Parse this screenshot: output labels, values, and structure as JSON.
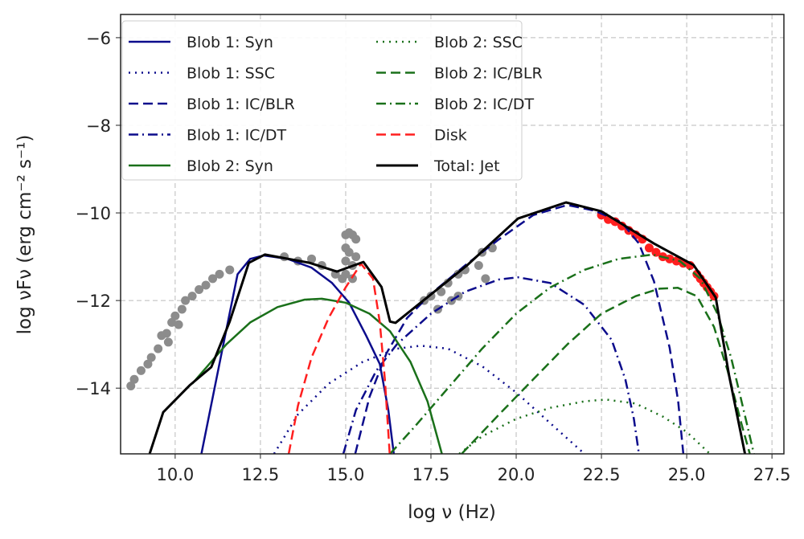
{
  "chart_data": {
    "type": "line",
    "xlabel": "log ν (Hz)",
    "ylabel": "log νFν (erg cm⁻² s⁻¹)",
    "xlim": [
      8.4,
      27.85
    ],
    "ylim": [
      -15.5,
      -5.47
    ],
    "xticks": [
      "10.0",
      "12.5",
      "15.0",
      "17.5",
      "20.0",
      "22.5",
      "25.0",
      "27.5"
    ],
    "yticks": [
      "−6",
      "−8",
      "−10",
      "−12",
      "−14"
    ],
    "grid": true,
    "legend_position": "top-left",
    "series": [
      {
        "name": "Blob 1: Syn",
        "color": "#0c0c8c",
        "style": "solid",
        "points": [
          [
            10.77,
            -15.5
          ],
          [
            11.36,
            -13.2
          ],
          [
            11.83,
            -11.4
          ],
          [
            12.2,
            -11.05
          ],
          [
            12.6,
            -10.97
          ],
          [
            13.3,
            -11.05
          ],
          [
            14.0,
            -11.25
          ],
          [
            14.6,
            -11.6
          ],
          [
            15.1,
            -12.05
          ],
          [
            15.6,
            -12.8
          ],
          [
            16.0,
            -13.45
          ],
          [
            16.25,
            -14.5
          ],
          [
            16.41,
            -15.5
          ]
        ]
      },
      {
        "name": "Blob 1: SSC",
        "color": "#0c0c8c",
        "style": "dotted",
        "points": [
          [
            12.9,
            -15.5
          ],
          [
            13.6,
            -14.6
          ],
          [
            14.5,
            -13.9
          ],
          [
            15.5,
            -13.4
          ],
          [
            16.5,
            -13.1
          ],
          [
            17.2,
            -13.03
          ],
          [
            18.0,
            -13.1
          ],
          [
            19,
            -13.5
          ],
          [
            20,
            -14.1
          ],
          [
            21,
            -14.8
          ],
          [
            22,
            -15.5
          ]
        ]
      },
      {
        "name": "Blob 1: IC/BLR",
        "color": "#0c0c8c",
        "style": "dashed",
        "points": [
          [
            15.28,
            -15.5
          ],
          [
            15.7,
            -14.2
          ],
          [
            16.2,
            -13.2
          ],
          [
            16.8,
            -12.4
          ],
          [
            17.5,
            -11.85
          ],
          [
            18.5,
            -11.2
          ],
          [
            19.5,
            -10.6
          ],
          [
            20.5,
            -10.05
          ],
          [
            21.5,
            -9.82
          ],
          [
            22.3,
            -9.95
          ],
          [
            23.1,
            -10.22
          ],
          [
            23.6,
            -10.7
          ],
          [
            24.04,
            -11.56
          ],
          [
            24.5,
            -13.08
          ],
          [
            24.75,
            -14.3
          ],
          [
            24.9,
            -15.5
          ]
        ]
      },
      {
        "name": "Blob 1: IC/DT",
        "color": "#0c0c8c",
        "style": "dashdot",
        "points": [
          [
            14.93,
            -15.5
          ],
          [
            15.3,
            -14.5
          ],
          [
            15.9,
            -13.6
          ],
          [
            16.5,
            -13.0
          ],
          [
            17.5,
            -12.3
          ],
          [
            18.5,
            -11.8
          ],
          [
            19.5,
            -11.52
          ],
          [
            20.05,
            -11.47
          ],
          [
            21,
            -11.6
          ],
          [
            22,
            -12.1
          ],
          [
            22.8,
            -12.9
          ],
          [
            23.2,
            -13.8
          ],
          [
            23.45,
            -14.7
          ],
          [
            23.6,
            -15.5
          ]
        ]
      },
      {
        "name": "Blob 2: Syn",
        "color": "#1a701a",
        "style": "solid",
        "points": [
          [
            10.5,
            -13.9
          ],
          [
            11,
            -13.45
          ],
          [
            11.5,
            -13.0
          ],
          [
            12.2,
            -12.5
          ],
          [
            13,
            -12.15
          ],
          [
            13.8,
            -11.98
          ],
          [
            14.3,
            -11.96
          ],
          [
            15,
            -12.05
          ],
          [
            15.7,
            -12.3
          ],
          [
            16.3,
            -12.7
          ],
          [
            16.9,
            -13.4
          ],
          [
            17.4,
            -14.3
          ],
          [
            17.82,
            -15.5
          ]
        ]
      },
      {
        "name": "Blob 2: SSC",
        "color": "#1a701a",
        "style": "dotted",
        "points": [
          [
            18.33,
            -15.5
          ],
          [
            19,
            -15.1
          ],
          [
            20,
            -14.7
          ],
          [
            21,
            -14.45
          ],
          [
            22,
            -14.3
          ],
          [
            22.63,
            -14.26
          ],
          [
            23.5,
            -14.35
          ],
          [
            24.3,
            -14.65
          ],
          [
            25,
            -15.0
          ],
          [
            25.68,
            -15.5
          ]
        ]
      },
      {
        "name": "Blob 2: IC/BLR",
        "color": "#1a701a",
        "style": "dashed",
        "points": [
          [
            18.4,
            -15.5
          ],
          [
            19.5,
            -14.6
          ],
          [
            20.5,
            -13.8
          ],
          [
            21.5,
            -13.0
          ],
          [
            22.5,
            -12.3
          ],
          [
            23.5,
            -11.9
          ],
          [
            24.2,
            -11.73
          ],
          [
            24.74,
            -11.71
          ],
          [
            25.3,
            -11.9
          ],
          [
            25.8,
            -12.6
          ],
          [
            26.2,
            -13.6
          ],
          [
            26.6,
            -14.8
          ],
          [
            26.85,
            -15.5
          ]
        ]
      },
      {
        "name": "Blob 2: IC/DT",
        "color": "#1a701a",
        "style": "dashdot",
        "points": [
          [
            16.3,
            -15.5
          ],
          [
            17,
            -14.9
          ],
          [
            18,
            -14.0
          ],
          [
            19,
            -13.1
          ],
          [
            20,
            -12.3
          ],
          [
            21,
            -11.7
          ],
          [
            22,
            -11.3
          ],
          [
            23,
            -11.05
          ],
          [
            24,
            -10.95
          ],
          [
            24.8,
            -11.1
          ],
          [
            25.4,
            -11.5
          ],
          [
            25.9,
            -12.3
          ],
          [
            26.3,
            -13.3
          ],
          [
            26.7,
            -14.6
          ],
          [
            26.97,
            -15.5
          ]
        ]
      },
      {
        "name": "Disk",
        "color": "#ff1f1f",
        "style": "dashed",
        "points": [
          [
            13.33,
            -15.5
          ],
          [
            13.6,
            -14.4
          ],
          [
            14.0,
            -13.3
          ],
          [
            14.5,
            -12.4
          ],
          [
            15.0,
            -11.7
          ],
          [
            15.45,
            -11.16
          ],
          [
            15.8,
            -11.5
          ],
          [
            16.0,
            -12.5
          ],
          [
            16.15,
            -13.8
          ],
          [
            16.29,
            -15.5
          ]
        ]
      },
      {
        "name": "Total: Jet",
        "color": "#000000",
        "style": "solid",
        "points": [
          [
            9.25,
            -15.5
          ],
          [
            9.65,
            -14.55
          ],
          [
            10.42,
            -13.94
          ],
          [
            11.06,
            -13.52
          ],
          [
            11.6,
            -12.48
          ],
          [
            12.16,
            -11.14
          ],
          [
            12.63,
            -10.95
          ],
          [
            13.94,
            -11.14
          ],
          [
            14.74,
            -11.34
          ],
          [
            15.52,
            -11.12
          ],
          [
            16.05,
            -11.69
          ],
          [
            16.3,
            -12.48
          ],
          [
            16.46,
            -12.51
          ],
          [
            17.39,
            -11.93
          ],
          [
            18.57,
            -11.19
          ],
          [
            20.05,
            -10.13
          ],
          [
            21.46,
            -9.76
          ],
          [
            22.49,
            -9.96
          ],
          [
            24.04,
            -10.7
          ],
          [
            25.2,
            -11.19
          ],
          [
            25.85,
            -11.93
          ],
          [
            26.24,
            -13.7
          ],
          [
            26.71,
            -15.5
          ]
        ]
      }
    ],
    "observations": [
      {
        "color": "#8c8c8c",
        "points": [
          [
            8.7,
            -13.95
          ],
          [
            8.8,
            -13.8
          ],
          [
            9.0,
            -13.6
          ],
          [
            9.2,
            -13.45
          ],
          [
            9.3,
            -13.3
          ],
          [
            9.5,
            -13.1
          ],
          [
            9.6,
            -12.8
          ],
          [
            9.75,
            -12.75
          ],
          [
            9.9,
            -12.5
          ],
          [
            10.0,
            -12.35
          ],
          [
            10.2,
            -12.2
          ],
          [
            10.3,
            -12.0
          ],
          [
            10.5,
            -11.9
          ],
          [
            10.7,
            -11.75
          ],
          [
            10.9,
            -11.65
          ],
          [
            11.1,
            -11.5
          ],
          [
            11.3,
            -11.4
          ],
          [
            11.6,
            -11.3
          ],
          [
            9.8,
            -12.95
          ],
          [
            10.1,
            -12.55
          ],
          [
            13.2,
            -11.0
          ],
          [
            13.6,
            -11.1
          ],
          [
            14.0,
            -11.05
          ],
          [
            14.3,
            -11.2
          ],
          [
            14.7,
            -11.4
          ],
          [
            14.9,
            -11.5
          ],
          [
            15.0,
            -10.5
          ],
          [
            15.0,
            -10.8
          ],
          [
            15.0,
            -11.1
          ],
          [
            15.1,
            -10.45
          ],
          [
            15.1,
            -10.9
          ],
          [
            15.2,
            -10.5
          ],
          [
            15.2,
            -11.2
          ],
          [
            15.3,
            -10.6
          ],
          [
            15.3,
            -11.0
          ],
          [
            15.0,
            -11.4
          ],
          [
            15.2,
            -11.5
          ],
          [
            17.3,
            -12.0
          ],
          [
            17.5,
            -11.9
          ],
          [
            17.7,
            -12.2
          ],
          [
            17.8,
            -11.8
          ],
          [
            18.0,
            -11.6
          ],
          [
            18.1,
            -12.0
          ],
          [
            18.3,
            -11.4
          ],
          [
            18.3,
            -11.9
          ],
          [
            18.5,
            -11.3
          ],
          [
            18.9,
            -11.2
          ],
          [
            19.0,
            -10.9
          ],
          [
            19.1,
            -11.5
          ],
          [
            19.3,
            -10.8
          ]
        ]
      },
      {
        "color": "#ff1f1f",
        "points": [
          [
            22.5,
            -10.05
          ],
          [
            22.7,
            -10.15
          ],
          [
            22.9,
            -10.2
          ],
          [
            23.1,
            -10.3
          ],
          [
            23.3,
            -10.4
          ],
          [
            23.5,
            -10.5
          ],
          [
            23.7,
            -10.6
          ],
          [
            23.9,
            -10.8
          ],
          [
            24.1,
            -10.9
          ],
          [
            24.3,
            -11.0
          ],
          [
            24.5,
            -11.05
          ],
          [
            24.7,
            -11.1
          ],
          [
            24.9,
            -11.15
          ],
          [
            25.1,
            -11.2
          ],
          [
            25.3,
            -11.4
          ],
          [
            25.4,
            -11.5
          ],
          [
            25.5,
            -11.6
          ],
          [
            25.6,
            -11.7
          ],
          [
            25.7,
            -11.8
          ],
          [
            25.8,
            -11.9
          ]
        ]
      }
    ]
  }
}
